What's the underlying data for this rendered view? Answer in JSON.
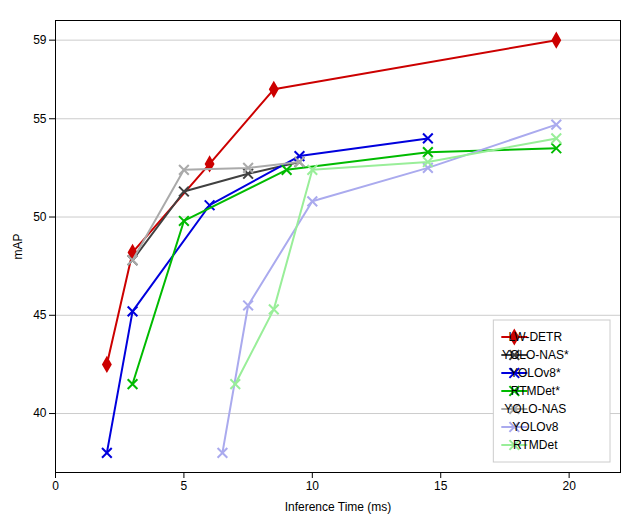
{
  "chart_data": {
    "type": "line",
    "xlabel": "Inference Time (ms)",
    "ylabel": "mAP",
    "series": [
      {
        "name": "LW-DETR",
        "color": "#cc0000",
        "marker": "diamond",
        "x": [
          2.0,
          3.0,
          6.0,
          8.5,
          19.5
        ],
        "values": [
          42.5,
          48.2,
          52.7,
          56.5,
          59.0
        ]
      },
      {
        "name": "YOLO-NAS*",
        "color": "#404040",
        "marker": "x",
        "x": [
          3.0,
          5.0,
          7.5,
          9.5
        ],
        "values": [
          47.8,
          51.3,
          52.2,
          52.8
        ]
      },
      {
        "name": "YOLOv8*",
        "color": "#0000dd",
        "marker": "x",
        "x": [
          2.0,
          3.0,
          6.0,
          9.5,
          14.5
        ],
        "values": [
          38.0,
          45.2,
          50.6,
          53.1,
          54.0
        ]
      },
      {
        "name": "RTMDet*",
        "color": "#00bb00",
        "marker": "x",
        "x": [
          3.0,
          5.0,
          9.0,
          14.5,
          19.5
        ],
        "values": [
          41.5,
          49.8,
          52.4,
          53.3,
          53.5
        ]
      },
      {
        "name": "YOLO-NAS",
        "color": "#aaaaaa",
        "marker": "x",
        "x": [
          3.0,
          5.0,
          7.5,
          9.5
        ],
        "values": [
          47.8,
          52.4,
          52.5,
          52.8
        ]
      },
      {
        "name": "YOLOv8",
        "color": "#aaaaee",
        "marker": "x",
        "x": [
          6.5,
          7.5,
          10.0,
          14.5,
          19.5
        ],
        "values": [
          38.0,
          45.5,
          50.8,
          52.5,
          54.7
        ]
      },
      {
        "name": "RTMDet",
        "color": "#99ee99",
        "marker": "x",
        "x": [
          7.0,
          8.5,
          10.0,
          14.5,
          19.5
        ],
        "values": [
          41.5,
          45.3,
          52.4,
          52.8,
          54.0
        ]
      }
    ],
    "xlim": [
      0,
      22
    ],
    "ylim": [
      37,
      60
    ],
    "xticks": [
      0,
      5,
      10,
      15,
      20
    ],
    "yticks": [
      40,
      45,
      50,
      55,
      59
    ],
    "grid": true,
    "legend": "lower right"
  }
}
